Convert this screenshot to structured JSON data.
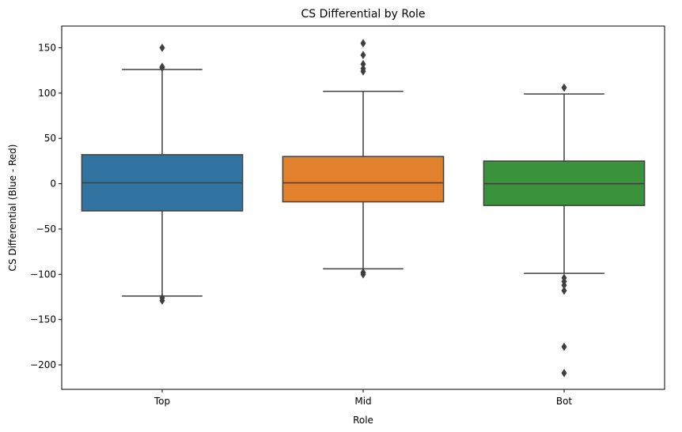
{
  "chart_data": {
    "type": "box",
    "title": "CS Differential by Role",
    "xlabel": "Role",
    "ylabel": "CS Differential (Blue - Red)",
    "categories": [
      "Top",
      "Mid",
      "Bot"
    ],
    "ylim": [
      -227,
      174
    ],
    "yticks": [
      -200,
      -150,
      -100,
      -50,
      0,
      50,
      100,
      150
    ],
    "ytick_labels": [
      "−200",
      "−150",
      "−100",
      "−50",
      "0",
      "50",
      "100",
      "150"
    ],
    "grid": false,
    "legend": "none",
    "boxes": [
      {
        "category": "Top",
        "color": "#3274a1",
        "whisker_low": -124,
        "q1": -30,
        "median": 1,
        "q3": 32,
        "whisker_high": 126,
        "outliers": [
          150,
          129,
          128,
          -126,
          -129
        ]
      },
      {
        "category": "Mid",
        "color": "#e1812c",
        "whisker_low": -94,
        "q1": -20,
        "median": 1,
        "q3": 30,
        "whisker_high": 102,
        "outliers": [
          155,
          142,
          132,
          127,
          124,
          -98,
          -100
        ]
      },
      {
        "category": "Bot",
        "color": "#3a923a",
        "whisker_low": -99,
        "q1": -24,
        "median": 0,
        "q3": 25,
        "whisker_high": 99,
        "outliers": [
          106,
          -104,
          -108,
          -112,
          -118,
          -180,
          -209
        ]
      }
    ]
  }
}
